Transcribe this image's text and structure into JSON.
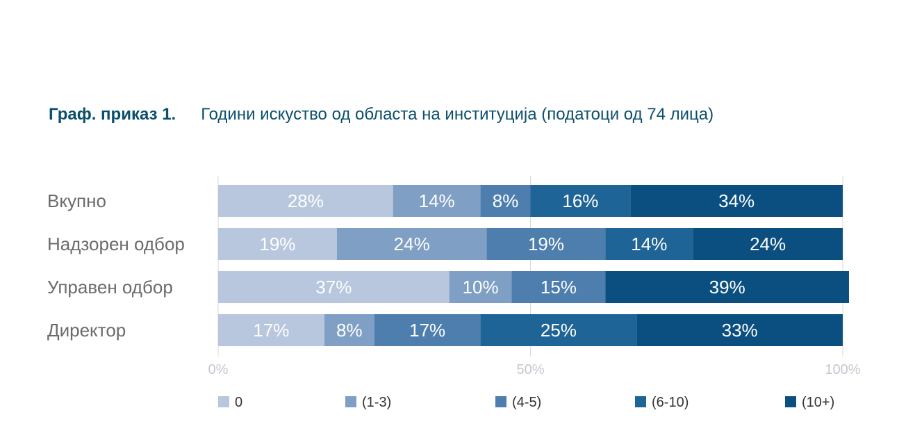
{
  "header": {
    "label": "Граф. приказ 1.",
    "title": "Години искуство од областа на институција (податоци од 74 лица)"
  },
  "chart_data": {
    "type": "bar",
    "orientation": "horizontal",
    "stacked": true,
    "title": "Години искуство од областа на институција (податоци од 74 лица)",
    "categories": [
      "Вкупно",
      "Надзорен одбор",
      "Управен одбор",
      "Директор"
    ],
    "series": [
      {
        "name": "0",
        "color": "#b8c7de",
        "values": [
          28,
          19,
          37,
          17
        ]
      },
      {
        "name": "(1-3)",
        "color": "#7f9fc4",
        "values": [
          14,
          24,
          10,
          8
        ]
      },
      {
        "name": "(4-5)",
        "color": "#4d7eae",
        "values": [
          8,
          19,
          15,
          17
        ]
      },
      {
        "name": "(6-10)",
        "color": "#1f6496",
        "values": [
          16,
          14,
          0,
          25
        ]
      },
      {
        "name": "(10+)",
        "color": "#0b4f80",
        "values": [
          34,
          24,
          39,
          33
        ]
      }
    ],
    "x_ticks": [
      "0%",
      "50%",
      "100%"
    ],
    "xlim": [
      0,
      100
    ],
    "grid": true,
    "legend_position": "bottom"
  }
}
